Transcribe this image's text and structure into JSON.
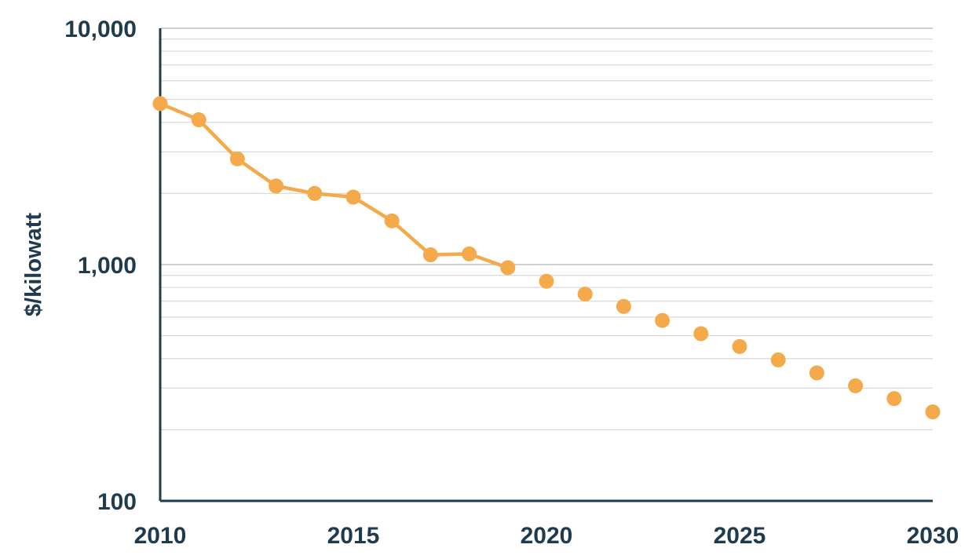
{
  "chart_data": {
    "type": "line",
    "title": "",
    "xlabel": "",
    "ylabel": "$/kilowatt",
    "yscale": "log",
    "xlim": [
      2010,
      2030
    ],
    "ylim": [
      100,
      10000
    ],
    "grid": true,
    "x_ticks": [
      "2010",
      "2015",
      "2020",
      "2025",
      "2030"
    ],
    "y_ticks": [
      "100",
      "1,000",
      "10,000"
    ],
    "colors": {
      "series": "#f4a94a",
      "axis": "#1f3b4d",
      "grid": "#d9d9d9"
    },
    "series": [
      {
        "style": "line-with-markers",
        "x": [
          2010,
          2011,
          2012,
          2013,
          2014,
          2015,
          2016,
          2017,
          2018,
          2019
        ],
        "y": [
          4800,
          4100,
          2800,
          2150,
          2000,
          1930,
          1530,
          1100,
          1110,
          970
        ]
      },
      {
        "style": "markers-only",
        "x": [
          2020,
          2021,
          2022,
          2023,
          2024,
          2025,
          2026,
          2027,
          2028,
          2029,
          2030
        ],
        "y": [
          850,
          750,
          665,
          580,
          510,
          450,
          395,
          348,
          307,
          271,
          238
        ]
      }
    ]
  }
}
